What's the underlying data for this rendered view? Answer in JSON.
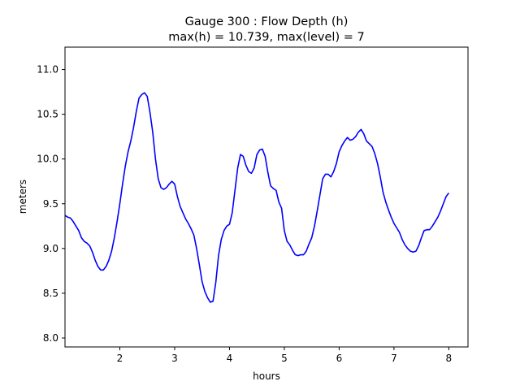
{
  "chart_data": {
    "type": "line",
    "title": "Gauge 300 : Flow Depth (h)",
    "subtitle": "max(h) =  10.739,    max(level) = 7",
    "xlabel": "hours",
    "ylabel": "meters",
    "xlim": [
      1.0,
      8.35
    ],
    "ylim": [
      7.9,
      11.25
    ],
    "xticks": [
      2,
      3,
      4,
      5,
      6,
      7,
      8
    ],
    "yticks": [
      8.0,
      8.5,
      9.0,
      9.5,
      10.0,
      10.5,
      11.0
    ],
    "grid": false,
    "series": [
      {
        "color": "#0000ff",
        "x": [
          1.0,
          1.05,
          1.1,
          1.15,
          1.2,
          1.25,
          1.3,
          1.35,
          1.4,
          1.45,
          1.5,
          1.55,
          1.6,
          1.65,
          1.7,
          1.75,
          1.8,
          1.85,
          1.9,
          1.95,
          2.0,
          2.05,
          2.1,
          2.15,
          2.2,
          2.25,
          2.3,
          2.35,
          2.4,
          2.45,
          2.5,
          2.55,
          2.6,
          2.65,
          2.7,
          2.75,
          2.8,
          2.85,
          2.9,
          2.95,
          3.0,
          3.05,
          3.1,
          3.15,
          3.2,
          3.25,
          3.3,
          3.35,
          3.4,
          3.45,
          3.5,
          3.55,
          3.6,
          3.65,
          3.7,
          3.75,
          3.8,
          3.85,
          3.9,
          3.95,
          4.0,
          4.05,
          4.1,
          4.15,
          4.2,
          4.25,
          4.3,
          4.35,
          4.4,
          4.45,
          4.5,
          4.55,
          4.6,
          4.65,
          4.7,
          4.75,
          4.8,
          4.85,
          4.9,
          4.95,
          5.0,
          5.05,
          5.1,
          5.15,
          5.2,
          5.25,
          5.3,
          5.35,
          5.4,
          5.45,
          5.5,
          5.55,
          5.6,
          5.65,
          5.7,
          5.75,
          5.8,
          5.85,
          5.9,
          5.95,
          6.0,
          6.05,
          6.1,
          6.15,
          6.2,
          6.25,
          6.3,
          6.35,
          6.4,
          6.45,
          6.5,
          6.55,
          6.6,
          6.65,
          6.7,
          6.75,
          6.8,
          6.85,
          6.9,
          6.95,
          7.0,
          7.05,
          7.1,
          7.15,
          7.2,
          7.25,
          7.3,
          7.35,
          7.4,
          7.45,
          7.5,
          7.55,
          7.6,
          7.65,
          7.7,
          7.75,
          7.8,
          7.85,
          7.9,
          7.95,
          8.0
        ],
        "y": [
          9.37,
          9.35,
          9.34,
          9.3,
          9.25,
          9.2,
          9.12,
          9.08,
          9.06,
          9.03,
          8.96,
          8.87,
          8.8,
          8.76,
          8.76,
          8.8,
          8.87,
          8.97,
          9.12,
          9.3,
          9.5,
          9.72,
          9.92,
          10.08,
          10.2,
          10.35,
          10.53,
          10.68,
          10.72,
          10.74,
          10.7,
          10.52,
          10.3,
          10.0,
          9.78,
          9.68,
          9.66,
          9.68,
          9.72,
          9.75,
          9.72,
          9.58,
          9.47,
          9.4,
          9.33,
          9.28,
          9.22,
          9.15,
          9.0,
          8.82,
          8.63,
          8.52,
          8.45,
          8.4,
          8.41,
          8.62,
          8.92,
          9.1,
          9.2,
          9.25,
          9.27,
          9.4,
          9.65,
          9.9,
          10.05,
          10.03,
          9.93,
          9.86,
          9.84,
          9.9,
          10.05,
          10.1,
          10.11,
          10.03,
          9.85,
          9.7,
          9.67,
          9.65,
          9.52,
          9.45,
          9.2,
          9.08,
          9.04,
          8.98,
          8.93,
          8.92,
          8.93,
          8.93,
          8.97,
          9.05,
          9.12,
          9.25,
          9.42,
          9.6,
          9.78,
          9.83,
          9.83,
          9.8,
          9.86,
          9.95,
          10.08,
          10.15,
          10.2,
          10.24,
          10.21,
          10.22,
          10.25,
          10.3,
          10.33,
          10.28,
          10.2,
          10.17,
          10.14,
          10.06,
          9.95,
          9.8,
          9.63,
          9.52,
          9.43,
          9.35,
          9.28,
          9.23,
          9.18,
          9.1,
          9.04,
          9.0,
          8.97,
          8.96,
          8.97,
          9.03,
          9.12,
          9.2,
          9.21,
          9.21,
          9.25,
          9.3,
          9.35,
          9.42,
          9.5,
          9.58,
          9.62
        ]
      }
    ]
  }
}
